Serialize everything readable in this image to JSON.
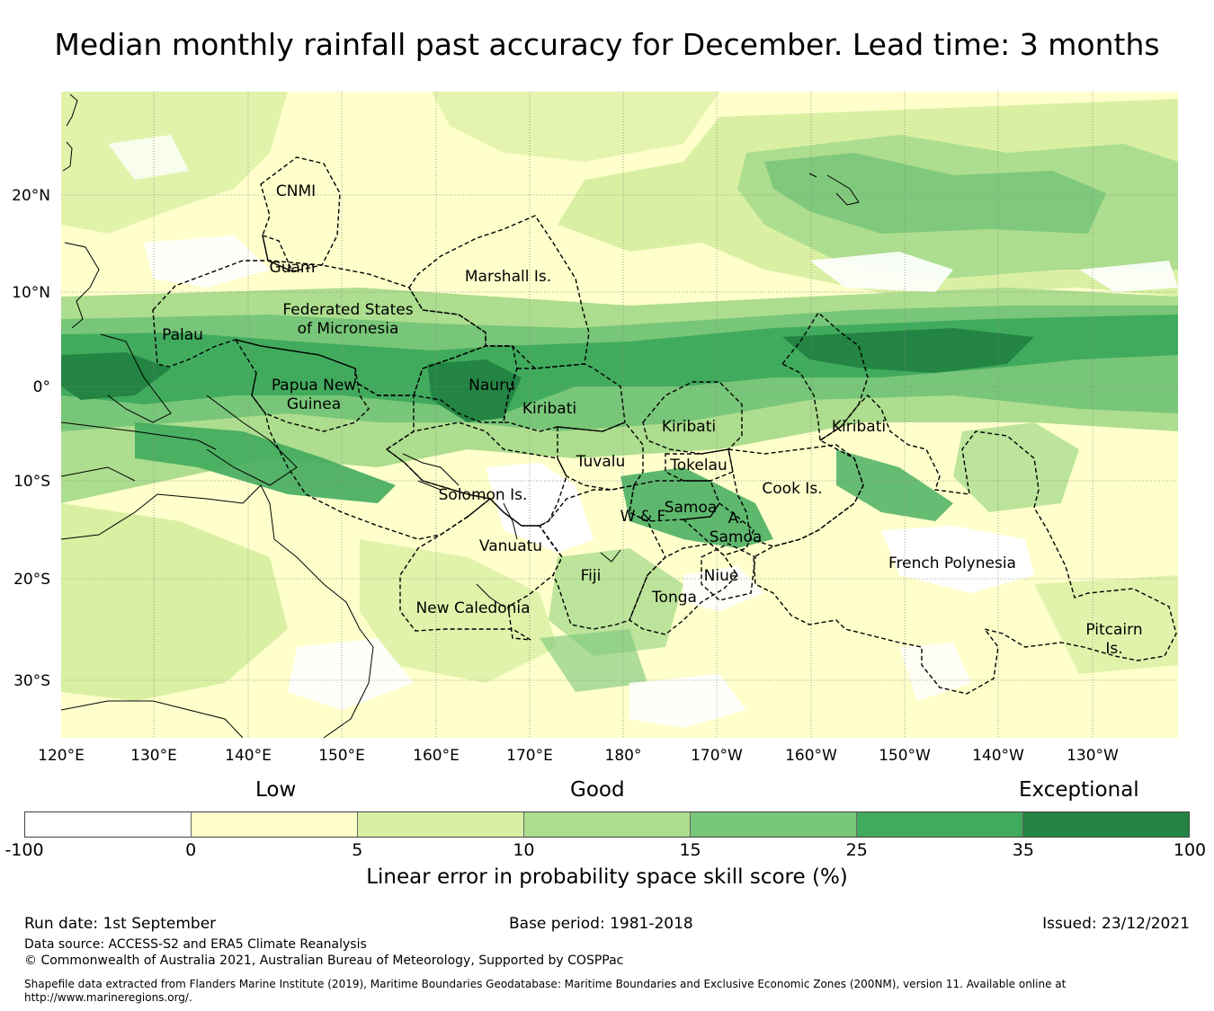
{
  "title": "Median monthly rainfall past accuracy for December. Lead time: 3 months",
  "map": {
    "lon_labels": [
      "120°E",
      "130°E",
      "140°E",
      "150°E",
      "160°E",
      "170°E",
      "180°",
      "170°W",
      "160°W",
      "150°W",
      "140°W",
      "130°W"
    ],
    "lat_labels": [
      "20°N",
      "10°N",
      "0°",
      "10°S",
      "20°S",
      "30°S"
    ],
    "regions": [
      {
        "id": "cnmi",
        "lines": [
          "CNMI"
        ]
      },
      {
        "id": "guam",
        "lines": [
          "Guam"
        ]
      },
      {
        "id": "marshall",
        "lines": [
          "Marshall Is."
        ]
      },
      {
        "id": "fsm",
        "lines": [
          "Federated States",
          "of Micronesia"
        ]
      },
      {
        "id": "palau",
        "lines": [
          "Palau"
        ]
      },
      {
        "id": "png",
        "lines": [
          "Papua New",
          "Guinea"
        ]
      },
      {
        "id": "nauru",
        "lines": [
          "Nauru"
        ]
      },
      {
        "id": "kiribati-w",
        "lines": [
          "Kiribati"
        ]
      },
      {
        "id": "kiribati-c",
        "lines": [
          "Kiribati"
        ]
      },
      {
        "id": "kiribati-e",
        "lines": [
          "Kiribati"
        ]
      },
      {
        "id": "tuvalu",
        "lines": [
          "Tuvalu"
        ]
      },
      {
        "id": "tokelau",
        "lines": [
          "Tokelau"
        ]
      },
      {
        "id": "solomon",
        "lines": [
          "Solomon Is."
        ]
      },
      {
        "id": "cook",
        "lines": [
          "Cook Is."
        ]
      },
      {
        "id": "samoa",
        "lines": [
          "Samoa"
        ]
      },
      {
        "id": "wf",
        "lines": [
          "W & F"
        ]
      },
      {
        "id": "asamoa",
        "lines": [
          "A.",
          "Samoa"
        ]
      },
      {
        "id": "vanuatu",
        "lines": [
          "Vanuatu"
        ]
      },
      {
        "id": "fiji",
        "lines": [
          "Fiji"
        ]
      },
      {
        "id": "niue",
        "lines": [
          "Niue"
        ]
      },
      {
        "id": "tonga",
        "lines": [
          "Tonga"
        ]
      },
      {
        "id": "newcal",
        "lines": [
          "New Caledonia"
        ]
      },
      {
        "id": "frpoly",
        "lines": [
          "French Polynesia"
        ]
      },
      {
        "id": "pitcairn",
        "lines": [
          "Pitcairn",
          "Is."
        ]
      }
    ]
  },
  "legend": {
    "words": [
      "Low",
      "Good",
      "Exceptional"
    ],
    "ticks": [
      "-100",
      "0",
      "5",
      "10",
      "15",
      "25",
      "35",
      "100"
    ],
    "colors": [
      "#ffffff",
      "#ffffcc",
      "#d9f0a3",
      "#addd8e",
      "#78c679",
      "#41ab5d",
      "#238443"
    ],
    "title": "Linear error in probability space skill score (%)"
  },
  "footer": {
    "run_date": "Run date: 1st September",
    "base_period": "Base period: 1981-2018",
    "issued": "Issued: 23/12/2021",
    "data_source": "Data source: ACCESS-S2 and ERA5 Climate Reanalysis",
    "copyright": "© Commonwealth of Australia 2021, Australian Bureau of Meteorology, Supported by COSPPac",
    "shapefile_1": "Shapefile data extracted from Flanders Marine Institute (2019), Maritime Boundaries Geodatabase: Maritime Boundaries and Exclusive Economic Zones (200NM), version 11. Available online at",
    "shapefile_2": "http://www.marineregions.org/."
  }
}
